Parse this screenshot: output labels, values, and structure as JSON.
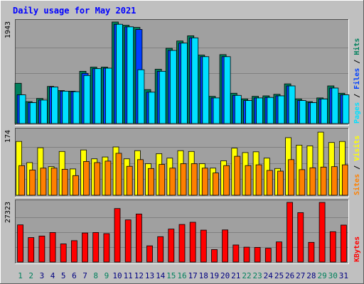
{
  "title": "Daily usage for May 2021",
  "colors": {
    "background": "#c0c0c0",
    "panel": "#a0a0a0",
    "title": "#0000ff",
    "hits": "#00805c",
    "files": "#0040ff",
    "pages": "#00e0ff",
    "visits": "#ffff00",
    "sites": "#ff8000",
    "kbytes": "#ff0000",
    "weekend_day": "#00805c",
    "weekday": "#000080"
  },
  "chart_data": {
    "type": "bar",
    "days": [
      "1",
      "2",
      "3",
      "4",
      "5",
      "6",
      "7",
      "8",
      "9",
      "10",
      "11",
      "12",
      "13",
      "14",
      "15",
      "16",
      "17",
      "18",
      "19",
      "20",
      "21",
      "22",
      "23",
      "24",
      "25",
      "26",
      "27",
      "28",
      "29",
      "30",
      "31"
    ],
    "weekend_days": [
      "1",
      "2",
      "8",
      "9",
      "15",
      "16",
      "22",
      "23",
      "29",
      "30"
    ],
    "panels": [
      {
        "id": "hits-files-pages",
        "scale_label": "1943",
        "ylim": [
          0,
          1943
        ],
        "legend": [
          "Pages",
          "Files",
          "Hits"
        ],
        "series": [
          {
            "name": "Hits",
            "values": [
              770,
              420,
              480,
              710,
              630,
              620,
              1000,
              1080,
              1080,
              1943,
              1880,
              1840,
              650,
              1040,
              1440,
              1580,
              1680,
              1310,
              520,
              1320,
              580,
              470,
              520,
              530,
              560,
              760,
              470,
              420,
              490,
              720,
              580
            ]
          },
          {
            "name": "Files",
            "values": [
              550,
              400,
              450,
              700,
              620,
              610,
              960,
              1050,
              1060,
              1900,
              1850,
              1800,
              600,
              1000,
              1400,
              1540,
              1640,
              1280,
              490,
              1280,
              540,
              440,
              490,
              500,
              530,
              720,
              440,
              400,
              470,
              680,
              550
            ]
          },
          {
            "name": "Pages",
            "values": [
              550,
              400,
              450,
              700,
              620,
              610,
              920,
              1050,
              1060,
              1900,
              1850,
              1030,
              600,
              1000,
              1400,
              1540,
              1640,
              1280,
              490,
              1280,
              540,
              440,
              490,
              500,
              530,
              720,
              440,
              400,
              470,
              680,
              550
            ]
          }
        ]
      },
      {
        "id": "visits-sites",
        "scale_label": "174",
        "ylim": [
          0,
          174
        ],
        "legend": [
          "Sites",
          "Visits"
        ],
        "series": [
          {
            "name": "Visits",
            "values": [
              145,
              88,
              128,
              77,
              118,
              71,
              122,
              98,
              103,
              130,
              98,
              120,
              85,
              112,
              100,
              120,
              118,
              85,
              73,
              93,
              127,
              115,
              117,
              100,
              72,
              155,
              135,
              133,
              170,
              142,
              145
            ]
          },
          {
            "name": "Sites",
            "values": [
              80,
              68,
              73,
              73,
              70,
              53,
              91,
              88,
              92,
              113,
              78,
              96,
              72,
              83,
              73,
              85,
              85,
              73,
              60,
              80,
              105,
              80,
              82,
              67,
              65,
              96,
              69,
              74,
              76,
              77,
              82
            ]
          }
        ]
      },
      {
        "id": "kbytes",
        "scale_label": "27323",
        "ylim": [
          0,
          27323
        ],
        "legend": [
          "KBytes"
        ],
        "series": [
          {
            "name": "KBytes",
            "values": [
              17000,
              11200,
              11900,
              13500,
              8300,
              9800,
              13300,
              13500,
              13000,
              24500,
              19300,
              22000,
              7400,
              11600,
              15100,
              17200,
              18200,
              14600,
              5700,
              14700,
              7800,
              6800,
              6700,
              6300,
              9200,
              27323,
              22600,
              9000,
              27300,
              13900,
              16900
            ]
          }
        ]
      }
    ]
  }
}
